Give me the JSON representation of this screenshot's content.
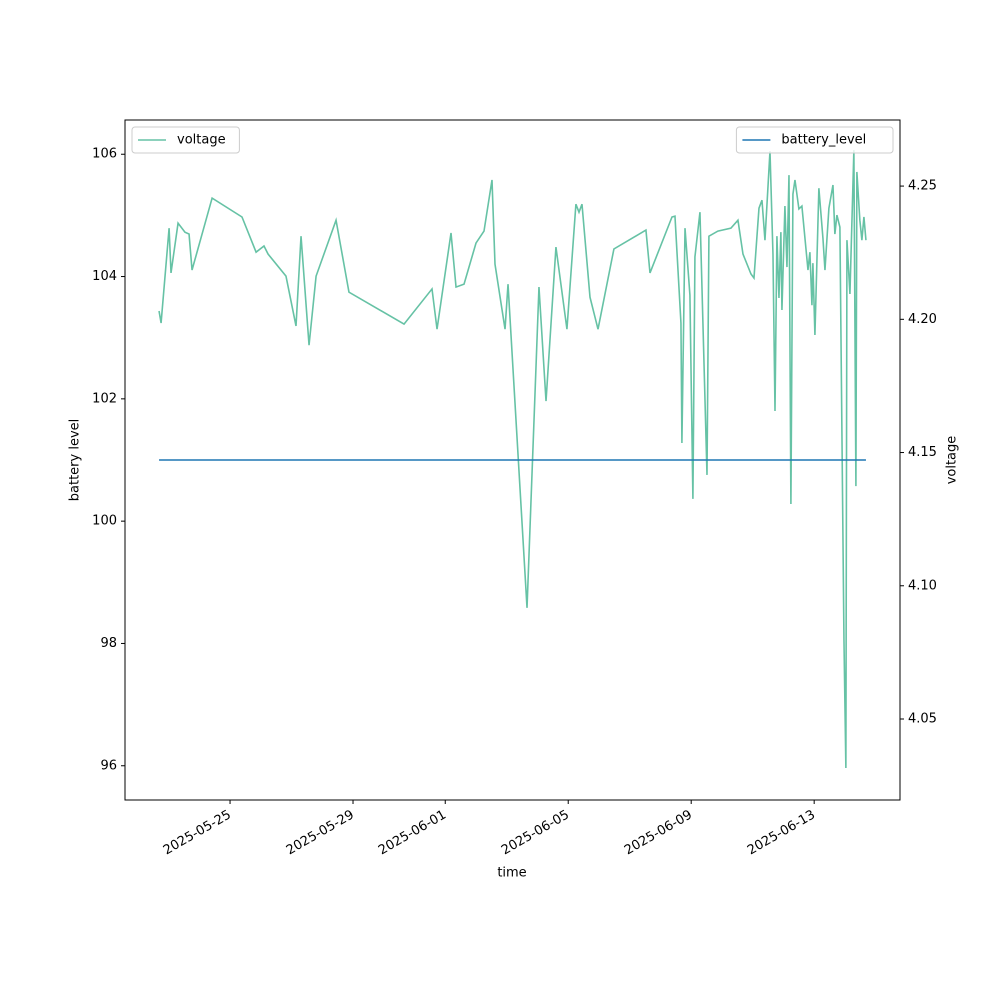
{
  "chart_data": {
    "type": "line",
    "xlabel": "time",
    "ylabel": "battery level",
    "y2label": "voltage",
    "xlim": [
      "2025-05-21T14:00",
      "2025-06-15T19:00"
    ],
    "xticks": [
      "2025-05-25",
      "2025-05-29",
      "2025-06-01",
      "2025-06-05",
      "2025-06-09",
      "2025-06-13"
    ],
    "ylim": [
      95.44,
      106.56
    ],
    "yticks": [
      96,
      98,
      100,
      102,
      104,
      106
    ],
    "y2lim": [
      4.0196,
      4.2748
    ],
    "y2ticks": [
      4.05,
      {
        "value": 4.1,
        "label": "4.10"
      },
      4.15,
      {
        "value": 4.2,
        "label": "4.20"
      },
      4.25
    ],
    "x": [
      "2025-05-22T16:35",
      "2025-05-22T18:10",
      "2025-05-23T00:25",
      "2025-05-23T01:55",
      "2025-05-23T07:25",
      "2025-05-23T12:50",
      "2025-05-23T16:00",
      "2025-05-23T18:20",
      "2025-05-24T10:00",
      "2025-05-25T09:20",
      "2025-05-25T20:20",
      "2025-05-26T02:30",
      "2025-05-26T05:40",
      "2025-05-26T19:40",
      "2025-05-27T03:30",
      "2025-05-27T07:25",
      "2025-05-27T13:40",
      "2025-05-27T19:10",
      "2025-05-28T10:45",
      "2025-05-28T20:50",
      "2025-05-30T15:50",
      "2025-05-31T13:40",
      "2025-05-31T17:35",
      "2025-06-01T04:30",
      "2025-06-01T08:25",
      "2025-06-01T14:40",
      "2025-06-02T00:00",
      "2025-06-02T06:15",
      "2025-06-02T12:30",
      "2025-06-02T14:50",
      "2025-06-02T22:40",
      "2025-06-03T01:00",
      "2025-06-03T15:50",
      "2025-06-04T01:10",
      "2025-06-04T06:40",
      "2025-06-04T14:25",
      "2025-06-04T23:00",
      "2025-06-05T06:00",
      "2025-06-05T08:25",
      "2025-06-05T10:45",
      "2025-06-05T17:00",
      "2025-06-05T23:15",
      "2025-06-06T11:40",
      "2025-06-07T12:40",
      "2025-06-07T15:50",
      "2025-06-08T09:00",
      "2025-06-08T11:20",
      "2025-06-08T16:00",
      "2025-06-08T16:45",
      "2025-06-08T19:10",
      "2025-06-08T23:00",
      "2025-06-09T01:20",
      "2025-06-09T02:55",
      "2025-06-09T06:50",
      "2025-06-09T12:20",
      "2025-06-09T13:50",
      "2025-06-09T20:50",
      "2025-06-10T07:00",
      "2025-06-10T12:30",
      "2025-06-10T16:25",
      "2025-06-10T22:40",
      "2025-06-11T01:00",
      "2025-06-11T04:55",
      "2025-06-11T07:15",
      "2025-06-11T09:35",
      "2025-06-11T13:30",
      "2025-06-11T15:50",
      "2025-06-11T17:25",
      "2025-06-11T18:55",
      "2025-06-11T20:30",
      "2025-06-11T22:00",
      "2025-06-11T22:50",
      "2025-06-12T01:10",
      "2025-06-12T02:45",
      "2025-06-12T04:20",
      "2025-06-12T05:50",
      "2025-06-12T07:25",
      "2025-06-12T09:00",
      "2025-06-12T12:05",
      "2025-06-12T14:25",
      "2025-06-12T19:10",
      "2025-06-12T20:40",
      "2025-06-12T22:15",
      "2025-06-12T23:00",
      "2025-06-13T00:35",
      "2025-06-13T03:40",
      "2025-06-13T06:50",
      "2025-06-13T08:25",
      "2025-06-13T11:30",
      "2025-06-13T14:40",
      "2025-06-13T16:10",
      "2025-06-13T17:45",
      "2025-06-13T20:05",
      "2025-06-13T23:15",
      "2025-06-14T00:45",
      "2025-06-14T01:35",
      "2025-06-14T03:55",
      "2025-06-14T07:00",
      "2025-06-14T08:35",
      "2025-06-14T09:20",
      "2025-06-14T11:40",
      "2025-06-14T13:15",
      "2025-06-14T14:50",
      "2025-06-14T16:25"
    ],
    "series": [
      {
        "name": "voltage",
        "color": "#66c2a5",
        "axis": "y2",
        "legend": "upper left",
        "values": [
          4.2031,
          4.1986,
          4.2342,
          4.2174,
          4.2361,
          4.2327,
          4.232,
          4.2185,
          4.2455,
          4.2384,
          4.2252,
          4.2275,
          4.2245,
          4.2162,
          4.1975,
          4.2312,
          4.1903,
          4.2162,
          4.2372,
          4.2102,
          4.1982,
          4.2114,
          4.1963,
          4.2324,
          4.2121,
          4.2132,
          4.2286,
          4.2331,
          4.2523,
          4.2207,
          4.1963,
          4.2132,
          4.0917,
          4.2121,
          4.1693,
          4.2271,
          4.1963,
          4.2432,
          4.2402,
          4.2432,
          4.2083,
          4.1963,
          4.2264,
          4.2335,
          4.2174,
          4.2384,
          4.2387,
          4.1986,
          4.1536,
          4.2342,
          4.2091,
          4.1326,
          4.2234,
          4.2402,
          4.1416,
          4.2312,
          4.2331,
          4.2342,
          4.2372,
          4.2245,
          4.217,
          4.2155,
          4.2417,
          4.2447,
          4.2297,
          4.2631,
          4.2245,
          4.1656,
          4.2312,
          4.208,
          4.2327,
          4.2035,
          4.2425,
          4.2196,
          4.2541,
          4.1307,
          4.247,
          4.2523,
          4.2414,
          4.2425,
          4.2185,
          4.2252,
          4.2053,
          4.2211,
          4.1941,
          4.2492,
          4.2305,
          4.2185,
          4.2417,
          4.2504,
          4.232,
          4.2391,
          4.2346,
          4.0797,
          4.0316,
          4.2297,
          4.2095,
          4.2635,
          4.1374,
          4.2553,
          4.2372,
          4.2297,
          4.2384,
          4.2297
        ]
      },
      {
        "name": "battery_level",
        "color": "#1f77b4",
        "axis": "y",
        "legend": "upper right",
        "values": [
          101,
          101,
          101,
          101,
          101,
          101,
          101,
          101,
          101,
          101,
          101,
          101,
          101,
          101,
          101,
          101,
          101,
          101,
          101,
          101,
          101,
          101,
          101,
          101,
          101,
          101,
          101,
          101,
          101,
          101,
          101,
          101,
          101,
          101,
          101,
          101,
          101,
          101,
          101,
          101,
          101,
          101,
          101,
          101,
          101,
          101,
          101,
          101,
          101,
          101,
          101,
          101,
          101,
          101,
          101,
          101,
          101,
          101,
          101,
          101,
          101,
          101,
          101,
          101,
          101,
          101,
          101,
          101,
          101,
          101,
          101,
          101,
          101,
          101,
          101,
          101,
          101,
          101,
          101,
          101,
          101,
          101,
          101,
          101,
          101,
          101,
          101,
          101,
          101,
          101,
          101,
          101,
          101,
          101,
          101,
          101,
          101,
          101,
          101,
          101,
          101,
          101,
          101,
          101
        ]
      }
    ]
  }
}
